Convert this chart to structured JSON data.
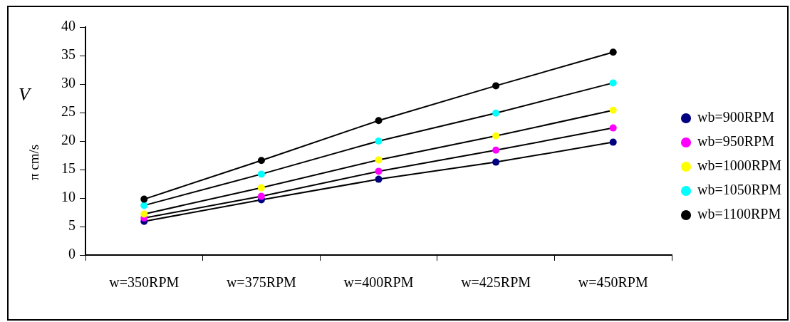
{
  "chart_data": {
    "type": "line",
    "ylabel": "V π cm/s",
    "categories": [
      "w=350RPM",
      "w=375RPM",
      "w=400RPM",
      "w=425RPM",
      "w=450RPM"
    ],
    "series": [
      {
        "name": "wb=900RPM",
        "color": "#000080",
        "values": [
          5.9,
          9.7,
          13.3,
          16.3,
          19.8
        ]
      },
      {
        "name": "wb=950RPM",
        "color": "#ff00ff",
        "values": [
          6.5,
          10.3,
          14.7,
          18.4,
          22.3
        ]
      },
      {
        "name": "wb=1000RPM",
        "color": "#ffff00",
        "values": [
          7.2,
          11.8,
          16.7,
          20.9,
          25.4
        ]
      },
      {
        "name": "wb=1050RPM",
        "color": "#00ffff",
        "values": [
          8.7,
          14.2,
          20.0,
          24.9,
          30.2
        ]
      },
      {
        "name": "wb=1100RPM",
        "color": "#000000",
        "values": [
          9.8,
          16.6,
          23.6,
          29.7,
          35.6
        ]
      }
    ],
    "ylim": [
      0,
      40
    ],
    "yticks": [
      0,
      5,
      10,
      15,
      20,
      25,
      30,
      35,
      40
    ],
    "grid": false,
    "legend": "right",
    "marker": "circle",
    "line_style": "solid"
  }
}
